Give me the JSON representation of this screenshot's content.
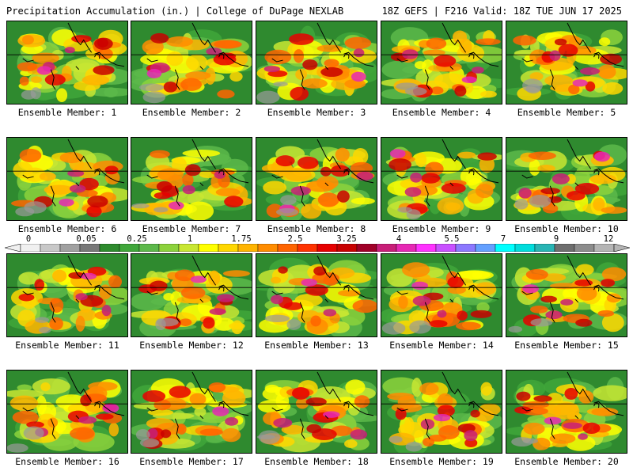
{
  "header": {
    "title": "Precipitation Accumulation (in.) | College of DuPage NEXLAB",
    "run": "18Z GEFS | F216 Valid: 18Z TUE JUN 17 2025"
  },
  "colorbar": {
    "tick_labels": [
      "0",
      "0.05",
      "0.25",
      "1",
      "1.75",
      "2.5",
      "3.25",
      "4",
      "5.5",
      "7",
      "9",
      "12"
    ],
    "colors": [
      "#f0f0f0",
      "#c8c8c8",
      "#a0a0a0",
      "#787878",
      "#2e8b2e",
      "#3fa63a",
      "#5cb84a",
      "#8cd23c",
      "#c8e632",
      "#ffff00",
      "#ffd700",
      "#ffb400",
      "#ff8c00",
      "#ff6400",
      "#ff3200",
      "#e60000",
      "#c80000",
      "#a00028",
      "#c81e78",
      "#e628b4",
      "#ff32ff",
      "#c850ff",
      "#8c78ff",
      "#64a0ff",
      "#00ffff",
      "#00dcdc",
      "#28b4b4",
      "#6e6e6e",
      "#8c8c8c",
      "#b4b4b4"
    ]
  },
  "panels": [
    {
      "label": "Ensemble Member: 1"
    },
    {
      "label": "Ensemble Member: 2"
    },
    {
      "label": "Ensemble Member: 3"
    },
    {
      "label": "Ensemble Member: 4"
    },
    {
      "label": "Ensemble Member: 5"
    },
    {
      "label": "Ensemble Member: 6"
    },
    {
      "label": "Ensemble Member: 7"
    },
    {
      "label": "Ensemble Member: 8"
    },
    {
      "label": "Ensemble Member: 9"
    },
    {
      "label": "Ensemble Member: 10"
    },
    {
      "label": "Ensemble Member: 11"
    },
    {
      "label": "Ensemble Member: 12"
    },
    {
      "label": "Ensemble Member: 13"
    },
    {
      "label": "Ensemble Member: 14"
    },
    {
      "label": "Ensemble Member: 15"
    },
    {
      "label": "Ensemble Member: 16"
    },
    {
      "label": "Ensemble Member: 17"
    },
    {
      "label": "Ensemble Member: 18"
    },
    {
      "label": "Ensemble Member: 19"
    },
    {
      "label": "Ensemble Member: 20"
    }
  ]
}
